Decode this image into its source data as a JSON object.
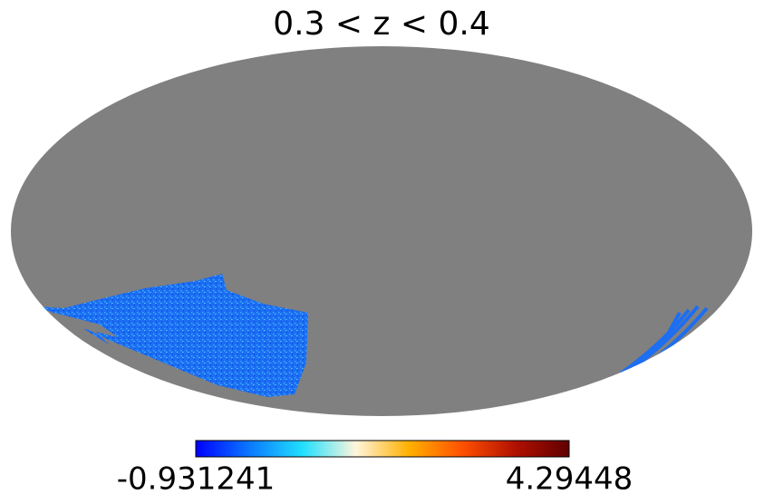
{
  "chart_data": {
    "type": "mollweide",
    "title": "0.3 < z < 0.4",
    "background_color": "#808080",
    "colorbar": {
      "vmin": -0.931241,
      "vmax": 4.29448,
      "colors": [
        "#0000ff",
        "#0a78ff",
        "#20e0ff",
        "#fff5dc",
        "#ffb000",
        "#ff5000",
        "#b01000",
        "#600000"
      ]
    }
  }
}
